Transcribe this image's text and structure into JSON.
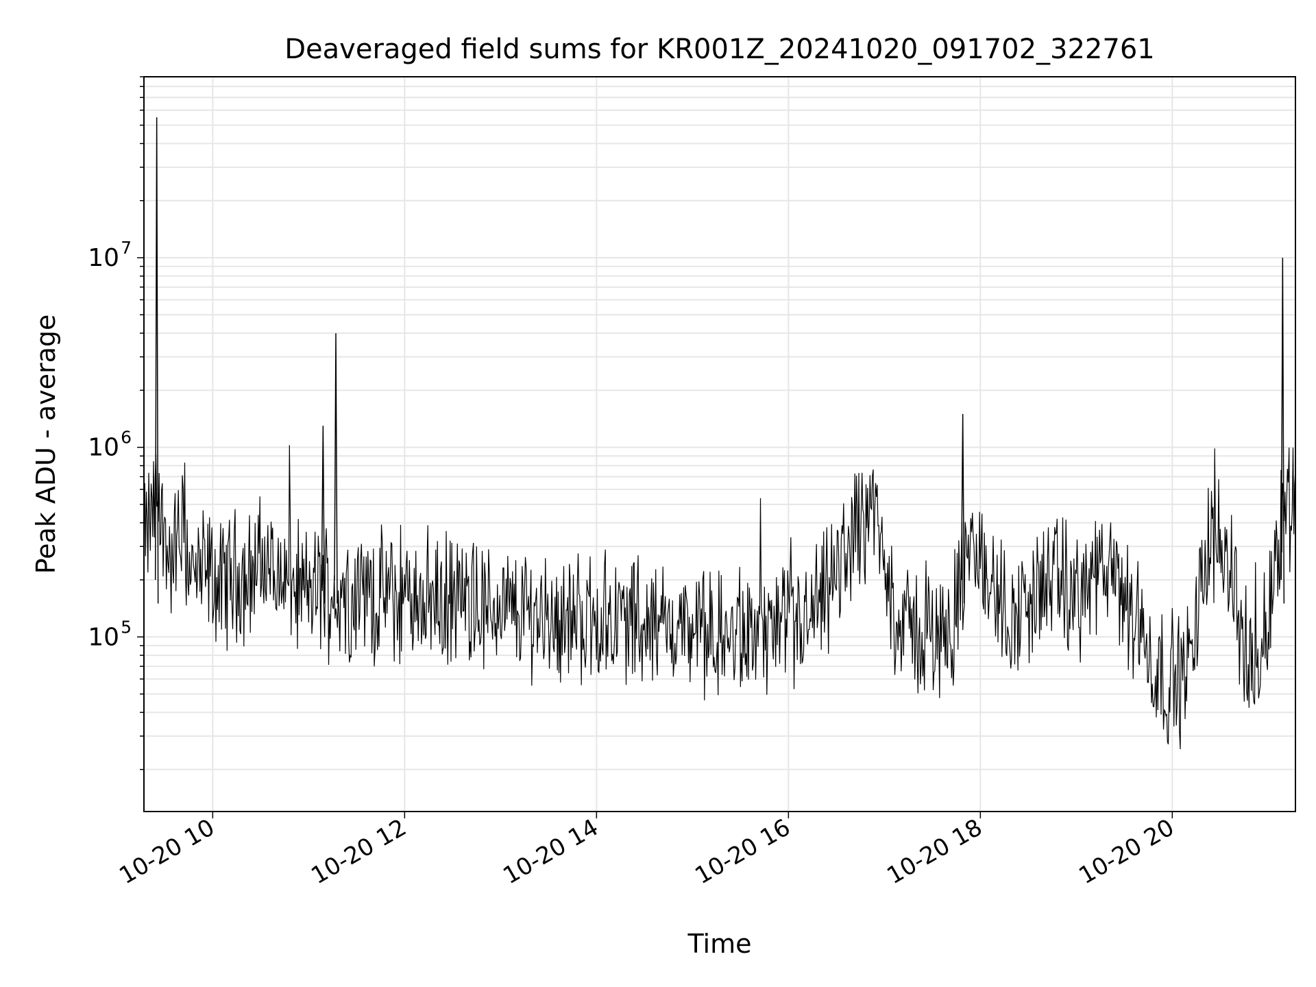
{
  "chart_data": {
    "type": "line",
    "title": "Deaveraged field sums for KR001Z_20241020_091702_322761",
    "xlabel": "Time",
    "ylabel": "Peak ADU - average",
    "x_ticks": [
      "10-20 10",
      "10-20 12",
      "10-20 14",
      "10-20 16",
      "10-20 18",
      "10-20 20"
    ],
    "y_ticks": [
      {
        "base": "10",
        "exp": "5",
        "value": 100000
      },
      {
        "base": "10",
        "exp": "6",
        "value": 1000000
      },
      {
        "base": "10",
        "exp": "7",
        "value": 10000000
      }
    ],
    "yscale": "log",
    "xlim": [
      "2024-10-20 09:17",
      "2024-10-20 21:17"
    ],
    "ylim": [
      12000,
      90000000
    ],
    "grid": true,
    "line_color": "#000000",
    "series": [
      {
        "x": [
          "09:17",
          "09:25",
          "09:33",
          "09:41",
          "09:49",
          "09:57",
          "10:05",
          "10:13",
          "10:21",
          "10:29",
          "10:37",
          "10:45",
          "10:53",
          "11:01",
          "11:09",
          "11:17",
          "11:25",
          "11:33",
          "11:41",
          "11:49",
          "11:57",
          "12:05",
          "12:13",
          "12:21",
          "12:29",
          "12:37",
          "12:45",
          "12:53",
          "13:01",
          "13:09",
          "13:17",
          "13:25",
          "13:33",
          "13:41",
          "13:49",
          "13:57",
          "14:05",
          "14:13",
          "14:21",
          "14:29",
          "14:37",
          "14:45",
          "14:53",
          "15:01",
          "15:09",
          "15:17",
          "15:25",
          "15:33",
          "15:41",
          "15:49",
          "15:57",
          "16:05",
          "16:13",
          "16:21",
          "16:29",
          "16:37",
          "16:45",
          "16:53",
          "17:01",
          "17:09",
          "17:17",
          "17:25",
          "17:33",
          "17:41",
          "17:49",
          "17:57",
          "18:05",
          "18:13",
          "18:21",
          "18:29",
          "18:37",
          "18:45",
          "18:53",
          "19:01",
          "19:09",
          "19:17",
          "19:25",
          "19:33",
          "19:41",
          "19:49",
          "19:57",
          "20:05",
          "20:13",
          "20:21",
          "20:29",
          "20:37",
          "20:45",
          "20:53",
          "21:01",
          "21:09",
          "21:17"
        ],
        "y": [
          300000,
          550000,
          250000,
          350000,
          200000,
          220000,
          180000,
          220000,
          200000,
          250000,
          230000,
          200000,
          180000,
          170000,
          190000,
          160000,
          170000,
          180000,
          160000,
          170000,
          150000,
          160000,
          170000,
          150000,
          160000,
          150000,
          140000,
          140000,
          150000,
          130000,
          140000,
          130000,
          130000,
          120000,
          130000,
          120000,
          120000,
          130000,
          120000,
          120000,
          110000,
          120000,
          110000,
          110000,
          100000,
          100000,
          95000,
          100000,
          100000,
          110000,
          100000,
          110000,
          120000,
          150000,
          200000,
          300000,
          400000,
          500000,
          200000,
          120000,
          110000,
          100000,
          100000,
          110000,
          200000,
          300000,
          200000,
          150000,
          120000,
          150000,
          180000,
          200000,
          180000,
          160000,
          200000,
          220000,
          180000,
          150000,
          100000,
          70000,
          60000,
          60000,
          80000,
          300000,
          350000,
          250000,
          80000,
          60000,
          150000,
          500000,
          550000
        ]
      }
    ],
    "spikes": [
      {
        "x": "09:25",
        "y": 55000000
      },
      {
        "x": "11:17",
        "y": 4000000
      },
      {
        "x": "11:09",
        "y": 1300000
      },
      {
        "x": "17:49",
        "y": 1500000
      },
      {
        "x": "21:09",
        "y": 10000000
      }
    ]
  }
}
